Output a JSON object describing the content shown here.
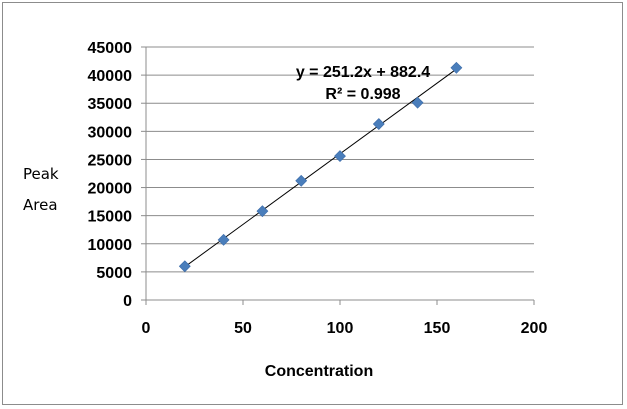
{
  "chart_data": {
    "type": "scatter",
    "title": "",
    "xlabel": "Concentration",
    "ylabel_lines": [
      "Peak",
      "Area"
    ],
    "xlim": [
      0,
      200
    ],
    "ylim": [
      0,
      45000
    ],
    "x_ticks": [
      0,
      50,
      100,
      150,
      200
    ],
    "y_ticks": [
      0,
      5000,
      10000,
      15000,
      20000,
      25000,
      30000,
      35000,
      40000,
      45000
    ],
    "grid": "horizontal",
    "marker": "diamond",
    "marker_color": "#4a7ebb",
    "points": [
      {
        "x": 20,
        "y": 6000
      },
      {
        "x": 40,
        "y": 10700
      },
      {
        "x": 60,
        "y": 15800
      },
      {
        "x": 80,
        "y": 21200
      },
      {
        "x": 100,
        "y": 25600
      },
      {
        "x": 120,
        "y": 31300
      },
      {
        "x": 140,
        "y": 35100
      },
      {
        "x": 160,
        "y": 41300
      }
    ],
    "trendline": {
      "type": "linear",
      "slope": 251.2,
      "intercept": 882.4,
      "x_range": [
        20,
        160
      ]
    },
    "annotations": {
      "equation": "y = 251.2x + 882.4",
      "r_squared": "R² = 0.998"
    }
  }
}
